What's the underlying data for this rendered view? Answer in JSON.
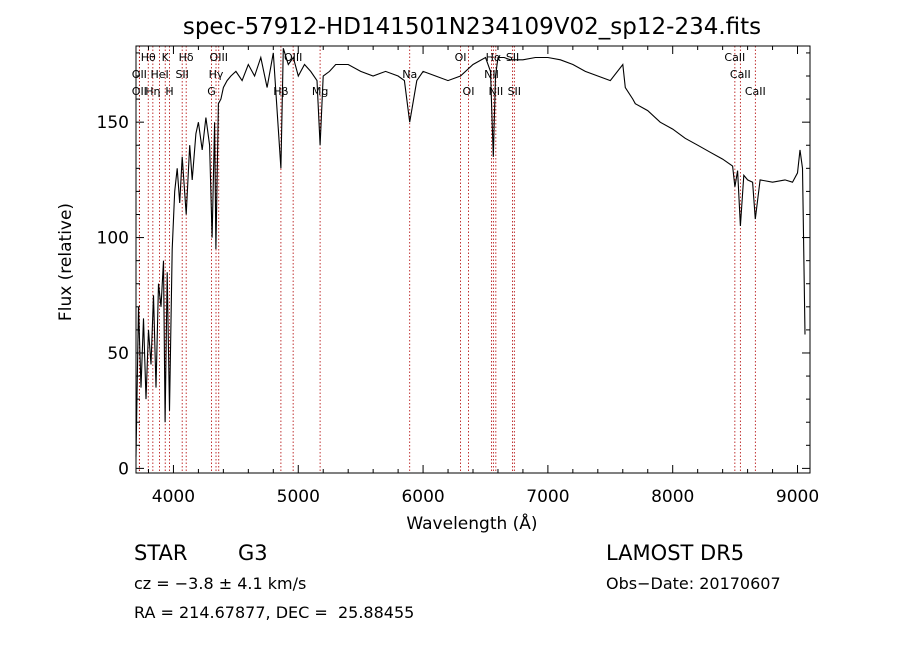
{
  "chart_data": {
    "type": "line",
    "title": "spec-57912-HD141501N234109V02_sp12-234.fits",
    "xlabel": "Wavelength (Å)",
    "ylabel": "Flux (relative)",
    "xlim": [
      3700,
      9100
    ],
    "ylim": [
      -2,
      183
    ],
    "x_ticks": [
      4000,
      5000,
      6000,
      7000,
      8000,
      9000
    ],
    "y_ticks": [
      0,
      50,
      100,
      150
    ],
    "grid": false,
    "series": [
      {
        "x": [
          3700,
          3720,
          3740,
          3760,
          3780,
          3800,
          3820,
          3840,
          3860,
          3880,
          3900,
          3920,
          3933,
          3950,
          3968,
          3990,
          4010,
          4030,
          4050,
          4070,
          4102,
          4130,
          4150,
          4180,
          4200,
          4230,
          4260,
          4290,
          4310,
          4330,
          4340,
          4360,
          4380,
          4400,
          4430,
          4460,
          4500,
          4550,
          4600,
          4650,
          4700,
          4750,
          4800,
          4861,
          4880,
          4920,
          4960,
          5000,
          5050,
          5100,
          5150,
          5175,
          5200,
          5250,
          5300,
          5400,
          5500,
          5600,
          5700,
          5800,
          5850,
          5893,
          5950,
          6000,
          6100,
          6200,
          6300,
          6400,
          6500,
          6540,
          6563,
          6580,
          6600,
          6650,
          6700,
          6800,
          6900,
          7000,
          7100,
          7200,
          7300,
          7400,
          7500,
          7600,
          7620,
          7680,
          7700,
          7800,
          7900,
          8000,
          8100,
          8200,
          8300,
          8400,
          8480,
          8498,
          8520,
          8542,
          8570,
          8600,
          8640,
          8662,
          8700,
          8800,
          8900,
          8960,
          9000,
          9020,
          9040,
          9060
        ],
        "y": [
          5,
          70,
          35,
          65,
          30,
          60,
          45,
          75,
          35,
          80,
          70,
          90,
          20,
          85,
          25,
          95,
          120,
          130,
          115,
          135,
          110,
          140,
          125,
          145,
          150,
          138,
          152,
          140,
          100,
          150,
          95,
          158,
          160,
          165,
          168,
          170,
          172,
          168,
          175,
          170,
          178,
          165,
          180,
          130,
          182,
          175,
          178,
          170,
          175,
          172,
          168,
          140,
          170,
          172,
          175,
          175,
          172,
          170,
          172,
          170,
          168,
          150,
          168,
          172,
          170,
          168,
          170,
          175,
          178,
          172,
          135,
          170,
          178,
          178,
          177,
          177,
          178,
          178,
          177,
          175,
          172,
          170,
          168,
          175,
          165,
          160,
          158,
          155,
          150,
          147,
          143,
          140,
          137,
          134,
          131,
          122,
          129,
          105,
          127,
          125,
          124,
          108,
          125,
          124,
          125,
          124,
          128,
          138,
          130,
          58
        ]
      }
    ],
    "line_ids": [
      {
        "label": "Hθ",
        "wave": 3798,
        "row": 1
      },
      {
        "label": "OII",
        "wave": 3727,
        "row": 2
      },
      {
        "label": "OII",
        "wave": 3727,
        "row": 3
      },
      {
        "label": "Hη",
        "wave": 3835,
        "row": 3
      },
      {
        "label": "HeI",
        "wave": 3889,
        "row": 2
      },
      {
        "label": "K",
        "wave": 3934,
        "row": 1
      },
      {
        "label": "H",
        "wave": 3969,
        "row": 3
      },
      {
        "label": "SII",
        "wave": 4070,
        "row": 2
      },
      {
        "label": "Hδ",
        "wave": 4102,
        "row": 1
      },
      {
        "label": "OIII",
        "wave": 4363,
        "row": 1
      },
      {
        "label": "Hγ",
        "wave": 4341,
        "row": 2
      },
      {
        "label": "G",
        "wave": 4305,
        "row": 3
      },
      {
        "label": "Hβ",
        "wave": 4861,
        "row": 3
      },
      {
        "label": "OIII",
        "wave": 4959,
        "row": 1
      },
      {
        "label": "Mg",
        "wave": 5175,
        "row": 3
      },
      {
        "label": "Na",
        "wave": 5893,
        "row": 2
      },
      {
        "label": "OI",
        "wave": 6300,
        "row": 1
      },
      {
        "label": "OI",
        "wave": 6364,
        "row": 3
      },
      {
        "label": "Hα",
        "wave": 6563,
        "row": 1
      },
      {
        "label": "NII",
        "wave": 6548,
        "row": 2
      },
      {
        "label": "NII",
        "wave": 6583,
        "row": 3
      },
      {
        "label": "SII",
        "wave": 6717,
        "row": 1
      },
      {
        "label": "SII",
        "wave": 6731,
        "row": 3
      },
      {
        "label": "CaII",
        "wave": 8498,
        "row": 1
      },
      {
        "label": "CaII",
        "wave": 8542,
        "row": 2
      },
      {
        "label": "CaII",
        "wave": 8662,
        "row": 3
      }
    ],
    "line_marker_color": "#b00000"
  },
  "info": {
    "object_class": "STAR",
    "subclass": "G3",
    "survey": "LAMOST DR5",
    "redshift": "cz = −3.8 ± 4.1 km/s",
    "obs_date": "Obs−Date: 20170607",
    "coords": "RA = 214.67877, DEC =  25.88455"
  }
}
